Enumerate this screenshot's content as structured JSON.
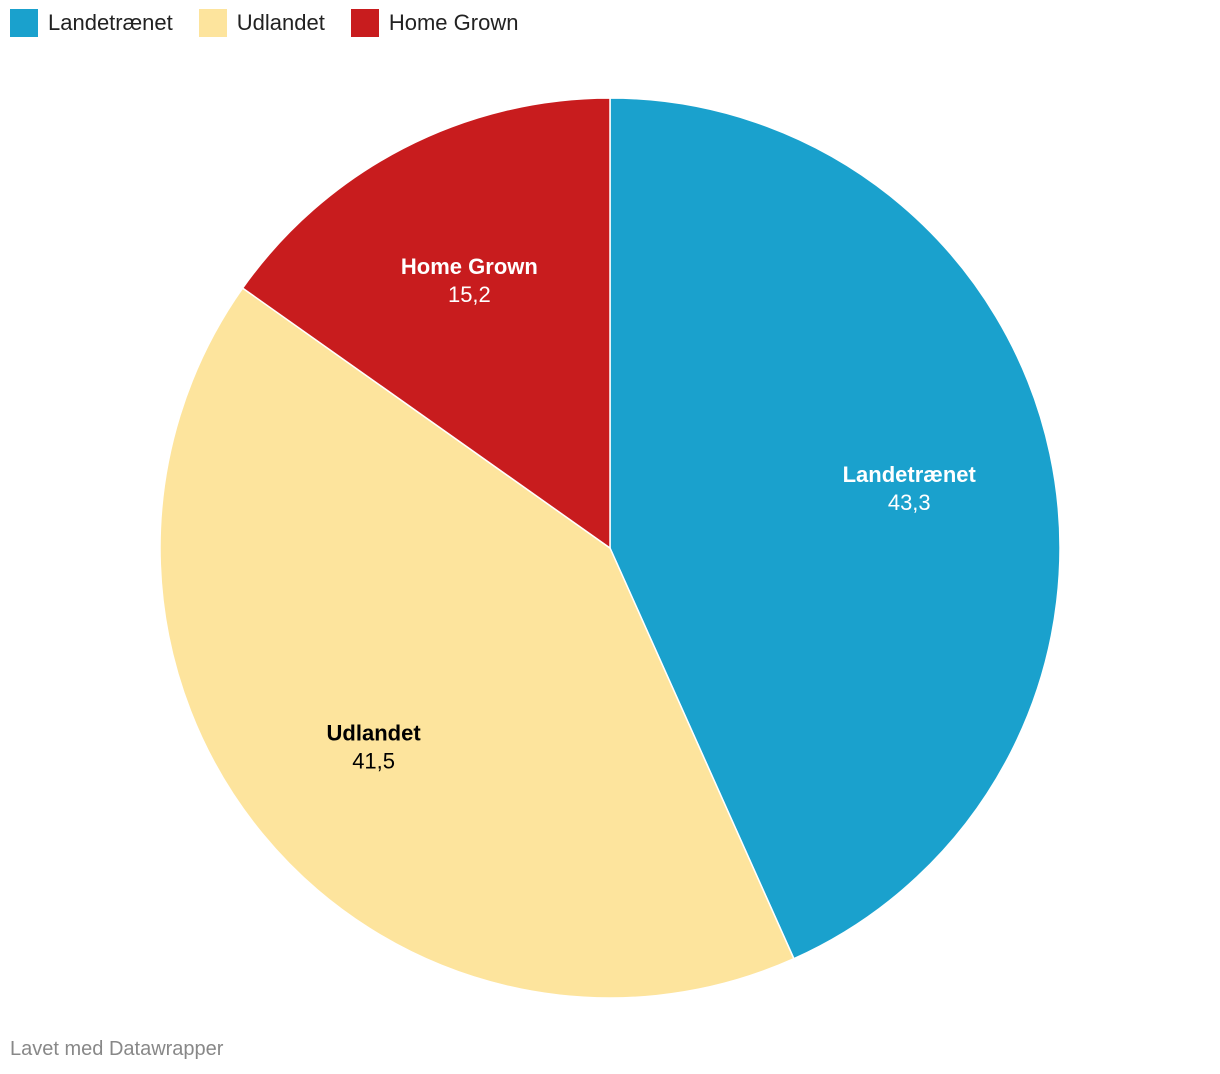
{
  "chart_data": {
    "type": "pie",
    "title": "",
    "start_angle_deg": 0,
    "direction": "clockwise",
    "slices": [
      {
        "name": "Landetrænet",
        "value": 43.3,
        "label": "43,3",
        "color": "#1aa1cd",
        "text_color": "#ffffff"
      },
      {
        "name": "Udlandet",
        "value": 41.5,
        "label": "41,5",
        "color": "#fde49d",
        "text_color": "#000000"
      },
      {
        "name": "Home Grown",
        "value": 15.2,
        "label": "15,2",
        "color": "#c81c1e",
        "text_color": "#ffffff"
      }
    ],
    "legend": {
      "placement": "top-left",
      "entries": [
        "Landetrænet",
        "Udlandet",
        "Home Grown"
      ]
    }
  },
  "footer": {
    "credit": "Lavet med Datawrapper"
  }
}
